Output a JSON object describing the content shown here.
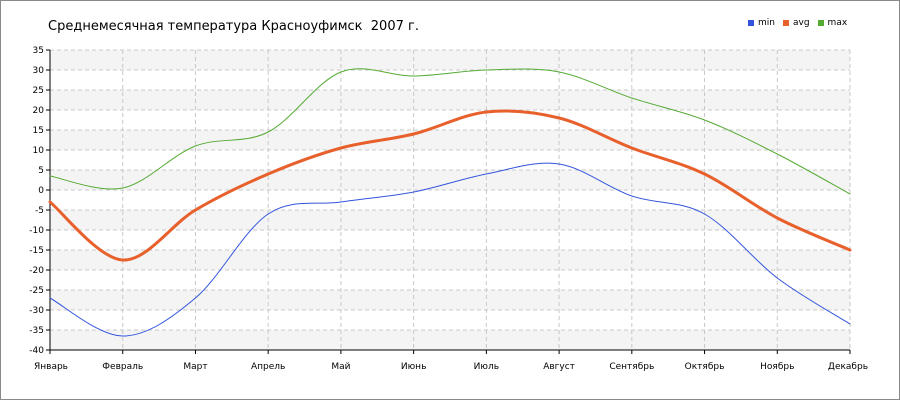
{
  "title": "Среднемесячная температура Красноуфимск  2007 г.",
  "colors": {
    "min": "#3355dd",
    "avg": "#e8602c",
    "max": "#55aa33",
    "grid": "#c8c8c8",
    "band": "#f4f4f4"
  },
  "chart_data": {
    "type": "line",
    "title": "Среднемесячная температура Красноуфимск  2007 г.",
    "xlabel": "",
    "ylabel": "",
    "categories": [
      "Январь",
      "Февраль",
      "Март",
      "Апрель",
      "Май",
      "Июнь",
      "Июль",
      "Август",
      "Сентябрь",
      "Октябрь",
      "Ноябрь",
      "Декабрь"
    ],
    "ylim": [
      -40,
      35
    ],
    "yticks": [
      35,
      30,
      25,
      20,
      15,
      10,
      5,
      0,
      -5,
      -10,
      -15,
      -20,
      -25,
      -30,
      -35,
      -40
    ],
    "grid": true,
    "legend_position": "top-right",
    "series": [
      {
        "name": "min",
        "values": [
          -27,
          -36.5,
          -27,
          -6,
          -3,
          -0.5,
          4,
          6.5,
          -1.5,
          -6,
          -22,
          -33.5
        ]
      },
      {
        "name": "avg",
        "values": [
          -3,
          -17.5,
          -5,
          4,
          10.5,
          14,
          19.5,
          18,
          10.5,
          4,
          -7,
          -15
        ]
      },
      {
        "name": "max",
        "values": [
          3.5,
          0.5,
          11,
          14.5,
          29.5,
          28.5,
          30,
          29.5,
          23,
          17.5,
          9,
          -1
        ]
      }
    ]
  }
}
